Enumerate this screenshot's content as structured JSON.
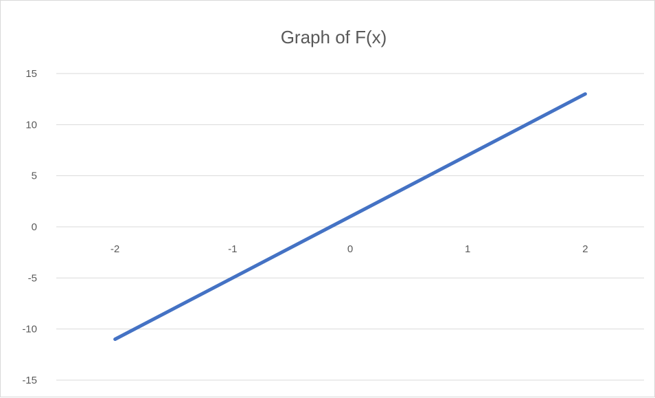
{
  "chart_data": {
    "type": "line",
    "title": "Graph of F(x)",
    "xlabel": "",
    "ylabel": "",
    "categories": [
      "-2",
      "-1",
      "0",
      "1",
      "2"
    ],
    "series": [
      {
        "values": [
          -11,
          -5,
          1,
          7,
          13
        ]
      }
    ],
    "yticks": [
      "15",
      "10",
      "5",
      "0",
      "-5",
      "-10",
      "-15"
    ],
    "ylim": [
      -15,
      15
    ],
    "grid": true,
    "legend": "none",
    "colors": {
      "series": "#4472c4",
      "gridline": "#d9d9d9",
      "text": "#595959"
    }
  }
}
